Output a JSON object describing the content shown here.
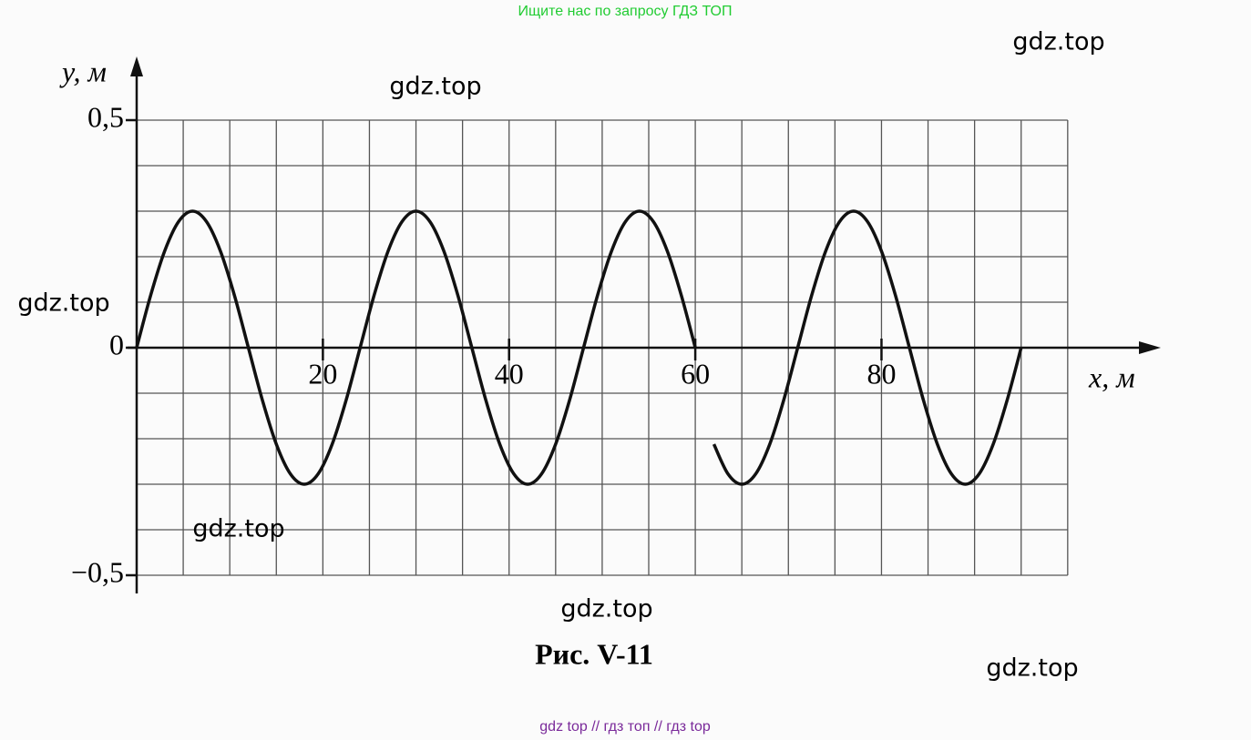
{
  "header": "Ищите нас по запросу ГДЗ ТОП",
  "footer": "gdz top  //  гдз топ  //  гдз top",
  "watermarks": [
    "gdz.top",
    "gdz.top",
    "gdz.top",
    "gdz.top",
    "gdz.top",
    "gdz.top"
  ],
  "chart_data": {
    "type": "line",
    "caption": "Рис. V-11",
    "xlabel": "x, м",
    "ylabel": "y, м",
    "xlim": [
      0,
      110
    ],
    "ylim": [
      -0.54,
      0.64
    ],
    "xticks": [
      20,
      40,
      60,
      80
    ],
    "yticks": [
      {
        "value": 0.5,
        "label": "0,5"
      },
      0,
      {
        "value": -0.5,
        "label": "−0,5"
      }
    ],
    "xgrid": [
      0,
      5,
      10,
      15,
      20,
      25,
      30,
      35,
      40,
      45,
      50,
      55,
      60,
      65,
      70,
      75,
      80,
      85,
      90,
      95,
      100
    ],
    "ygrid": [
      -0.5,
      -0.4,
      -0.3,
      -0.2,
      -0.1,
      0,
      0.1,
      0.2,
      0.3,
      0.4,
      0.5
    ],
    "grid": true,
    "x": [
      0,
      1.5,
      3,
      4.5,
      6,
      7.5,
      9,
      10.5,
      12,
      13.5,
      15,
      16.5,
      18,
      19.5,
      21,
      22.5,
      24,
      25.5,
      27,
      28.5,
      30,
      31.5,
      33,
      34.5,
      36,
      37.5,
      39,
      40.5,
      42,
      43.5,
      45,
      46.5,
      48,
      49.5,
      51,
      52.5,
      54,
      55.5,
      57,
      58.5,
      60,
      61,
      62,
      63.5,
      65,
      66.5,
      68,
      69.5,
      71,
      72.5,
      74,
      75.5,
      77,
      78.5,
      80,
      81.5,
      83,
      84.5,
      86,
      87.5,
      89,
      90.5,
      92,
      93.5,
      95
    ],
    "series": [
      {
        "name": "y",
        "color": "#111111",
        "values": [
          0,
          0.115,
          0.212,
          0.277,
          0.3,
          0.277,
          0.212,
          0.115,
          0,
          -0.115,
          -0.212,
          -0.277,
          -0.3,
          -0.277,
          -0.212,
          -0.115,
          0,
          0.115,
          0.212,
          0.277,
          0.3,
          0.277,
          0.212,
          0.115,
          0,
          -0.115,
          -0.212,
          -0.277,
          -0.3,
          -0.277,
          -0.212,
          -0.115,
          0,
          0.115,
          0.212,
          0.277,
          0.3,
          0.277,
          0.212,
          0.115,
          0,
          null,
          -0.212,
          -0.277,
          -0.3,
          -0.277,
          -0.212,
          -0.115,
          0,
          0.115,
          0.212,
          0.277,
          0.3,
          0.277,
          0.212,
          0.115,
          0,
          -0.115,
          -0.212,
          -0.277,
          -0.3,
          -0.277,
          -0.212,
          -0.115,
          0
        ]
      }
    ]
  }
}
